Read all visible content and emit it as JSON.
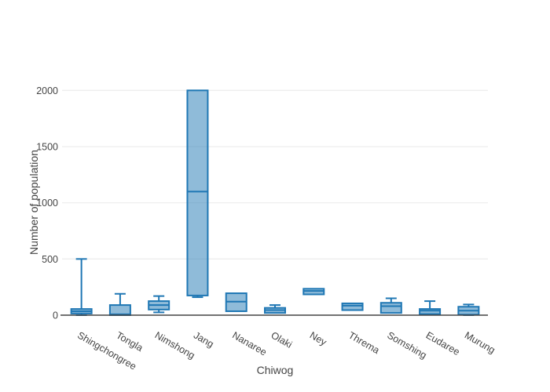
{
  "chart_data": {
    "type": "box",
    "title": "",
    "xlabel": "Chiwog",
    "ylabel": "Number of population",
    "categories": [
      "Shingchongree",
      "Tongla",
      "Nimshong",
      "Jang",
      "Nanaree",
      "Olaki",
      "Ney",
      "Threma",
      "Somshing",
      "Eudaree",
      "Murung"
    ],
    "boxes": [
      {
        "category": "Shingchongree",
        "min": 0,
        "q1": 15,
        "median": 35,
        "q3": 55,
        "max": 500
      },
      {
        "category": "Tongla",
        "min": 0,
        "q1": 0,
        "median": 8,
        "q3": 90,
        "max": 190
      },
      {
        "category": "Nimshong",
        "min": 25,
        "q1": 50,
        "median": 90,
        "q3": 125,
        "max": 170
      },
      {
        "category": "Jang",
        "min": 160,
        "q1": 175,
        "median": 1100,
        "q3": 2000,
        "max": 2000
      },
      {
        "category": "Nanaree",
        "min": 35,
        "q1": 35,
        "median": 120,
        "q3": 195,
        "max": 195
      },
      {
        "category": "Olaki",
        "min": 20,
        "q1": 20,
        "median": 45,
        "q3": 65,
        "max": 90
      },
      {
        "category": "Ney",
        "min": 185,
        "q1": 185,
        "median": 215,
        "q3": 235,
        "max": 235
      },
      {
        "category": "Threma",
        "min": 45,
        "q1": 45,
        "median": 85,
        "q3": 105,
        "max": 105
      },
      {
        "category": "Somshing",
        "min": 20,
        "q1": 20,
        "median": 80,
        "q3": 110,
        "max": 150
      },
      {
        "category": "Eudaree",
        "min": 10,
        "q1": 10,
        "median": 40,
        "q3": 55,
        "max": 125
      },
      {
        "category": "Murung",
        "min": 0,
        "q1": 5,
        "median": 40,
        "q3": 75,
        "max": 95
      }
    ],
    "yticks": [
      0,
      500,
      1000,
      1500,
      2000
    ],
    "ylim": [
      0,
      2100
    ],
    "grid": true,
    "legend": "none",
    "colors": {
      "box_line": "#1f77b4",
      "box_fill": "rgba(31,119,180,0.5)",
      "gridline": "#eeeeee",
      "axis_line": "#444444",
      "text": "#444444"
    }
  }
}
